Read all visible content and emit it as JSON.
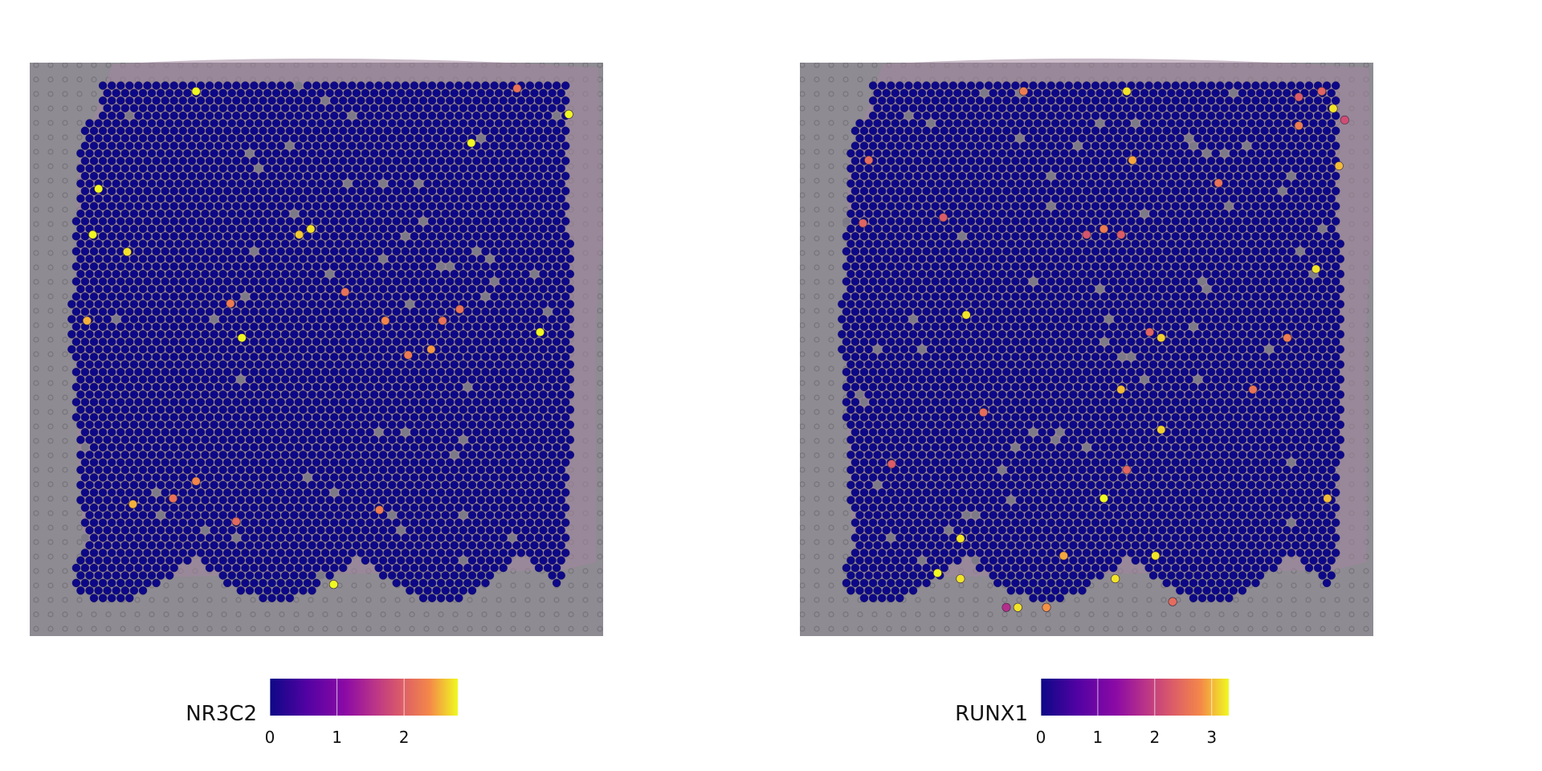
{
  "chart_data": [
    {
      "type": "scatter",
      "title": "",
      "xlabel": "",
      "ylabel": "",
      "grid": false,
      "legend_placement": "bottom",
      "legend_title": "NR3C2",
      "colorscale": "plasma",
      "color_range": [
        0,
        2.8
      ],
      "legend_ticks": [
        0,
        1,
        2
      ],
      "legend_tick_labels": [
        "0",
        "1",
        "2"
      ],
      "highlight_spots": [
        {
          "x": 0.29,
          "y": 0.05,
          "value": 2.8
        },
        {
          "x": 0.85,
          "y": 0.045,
          "value": 2.1
        },
        {
          "x": 0.94,
          "y": 0.09,
          "value": 2.8
        },
        {
          "x": 0.77,
          "y": 0.14,
          "value": 2.8
        },
        {
          "x": 0.12,
          "y": 0.22,
          "value": 2.8
        },
        {
          "x": 0.11,
          "y": 0.3,
          "value": 2.8
        },
        {
          "x": 0.17,
          "y": 0.33,
          "value": 2.7
        },
        {
          "x": 0.47,
          "y": 0.3,
          "value": 2.6
        },
        {
          "x": 0.49,
          "y": 0.29,
          "value": 2.7
        },
        {
          "x": 0.35,
          "y": 0.42,
          "value": 2.2
        },
        {
          "x": 0.55,
          "y": 0.4,
          "value": 2.1
        },
        {
          "x": 0.62,
          "y": 0.45,
          "value": 2.3
        },
        {
          "x": 0.72,
          "y": 0.45,
          "value": 2.1
        },
        {
          "x": 0.75,
          "y": 0.43,
          "value": 2.1
        },
        {
          "x": 0.1,
          "y": 0.45,
          "value": 2.5
        },
        {
          "x": 0.37,
          "y": 0.48,
          "value": 2.8
        },
        {
          "x": 0.7,
          "y": 0.5,
          "value": 2.4
        },
        {
          "x": 0.66,
          "y": 0.51,
          "value": 2.2
        },
        {
          "x": 0.89,
          "y": 0.47,
          "value": 2.8
        },
        {
          "x": 0.18,
          "y": 0.77,
          "value": 2.5
        },
        {
          "x": 0.25,
          "y": 0.76,
          "value": 2.1
        },
        {
          "x": 0.29,
          "y": 0.73,
          "value": 2.3
        },
        {
          "x": 0.36,
          "y": 0.8,
          "value": 2.0
        },
        {
          "x": 0.61,
          "y": 0.78,
          "value": 2.2
        },
        {
          "x": 0.53,
          "y": 0.91,
          "value": 2.8
        }
      ]
    },
    {
      "type": "scatter",
      "title": "",
      "xlabel": "",
      "ylabel": "",
      "grid": false,
      "legend_placement": "bottom",
      "legend_title": "RUNX1",
      "colorscale": "plasma",
      "color_range": [
        0,
        3.3
      ],
      "legend_ticks": [
        0,
        1,
        2,
        3
      ],
      "legend_tick_labels": [
        "0",
        "1",
        "2",
        "3"
      ],
      "highlight_spots": [
        {
          "x": 0.39,
          "y": 0.05,
          "value": 2.6
        },
        {
          "x": 0.57,
          "y": 0.05,
          "value": 3.2
        },
        {
          "x": 0.87,
          "y": 0.06,
          "value": 2.2
        },
        {
          "x": 0.91,
          "y": 0.05,
          "value": 2.3
        },
        {
          "x": 0.93,
          "y": 0.08,
          "value": 3.2
        },
        {
          "x": 0.95,
          "y": 0.1,
          "value": 2.0
        },
        {
          "x": 0.87,
          "y": 0.11,
          "value": 2.6
        },
        {
          "x": 0.12,
          "y": 0.17,
          "value": 2.4
        },
        {
          "x": 0.58,
          "y": 0.17,
          "value": 2.9
        },
        {
          "x": 0.73,
          "y": 0.21,
          "value": 2.5
        },
        {
          "x": 0.94,
          "y": 0.18,
          "value": 3.0
        },
        {
          "x": 0.11,
          "y": 0.28,
          "value": 2.3
        },
        {
          "x": 0.25,
          "y": 0.27,
          "value": 2.2
        },
        {
          "x": 0.5,
          "y": 0.3,
          "value": 2.1
        },
        {
          "x": 0.53,
          "y": 0.29,
          "value": 2.6
        },
        {
          "x": 0.56,
          "y": 0.3,
          "value": 2.2
        },
        {
          "x": 0.9,
          "y": 0.36,
          "value": 3.2
        },
        {
          "x": 0.29,
          "y": 0.44,
          "value": 3.2
        },
        {
          "x": 0.61,
          "y": 0.47,
          "value": 2.3
        },
        {
          "x": 0.63,
          "y": 0.48,
          "value": 3.1
        },
        {
          "x": 0.85,
          "y": 0.48,
          "value": 2.6
        },
        {
          "x": 0.56,
          "y": 0.57,
          "value": 3.0
        },
        {
          "x": 0.32,
          "y": 0.61,
          "value": 2.4
        },
        {
          "x": 0.63,
          "y": 0.64,
          "value": 3.1
        },
        {
          "x": 0.79,
          "y": 0.57,
          "value": 2.5
        },
        {
          "x": 0.16,
          "y": 0.7,
          "value": 2.2
        },
        {
          "x": 0.57,
          "y": 0.71,
          "value": 2.3
        },
        {
          "x": 0.53,
          "y": 0.76,
          "value": 3.3
        },
        {
          "x": 0.92,
          "y": 0.76,
          "value": 3.0
        },
        {
          "x": 0.28,
          "y": 0.83,
          "value": 3.2
        },
        {
          "x": 0.46,
          "y": 0.86,
          "value": 2.9
        },
        {
          "x": 0.62,
          "y": 0.86,
          "value": 3.2
        },
        {
          "x": 0.24,
          "y": 0.89,
          "value": 3.3
        },
        {
          "x": 0.28,
          "y": 0.9,
          "value": 3.2
        },
        {
          "x": 0.55,
          "y": 0.9,
          "value": 3.2
        },
        {
          "x": 0.36,
          "y": 0.95,
          "value": 1.6
        },
        {
          "x": 0.38,
          "y": 0.95,
          "value": 3.2
        },
        {
          "x": 0.43,
          "y": 0.95,
          "value": 2.8
        },
        {
          "x": 0.65,
          "y": 0.94,
          "value": 2.4
        }
      ]
    }
  ]
}
